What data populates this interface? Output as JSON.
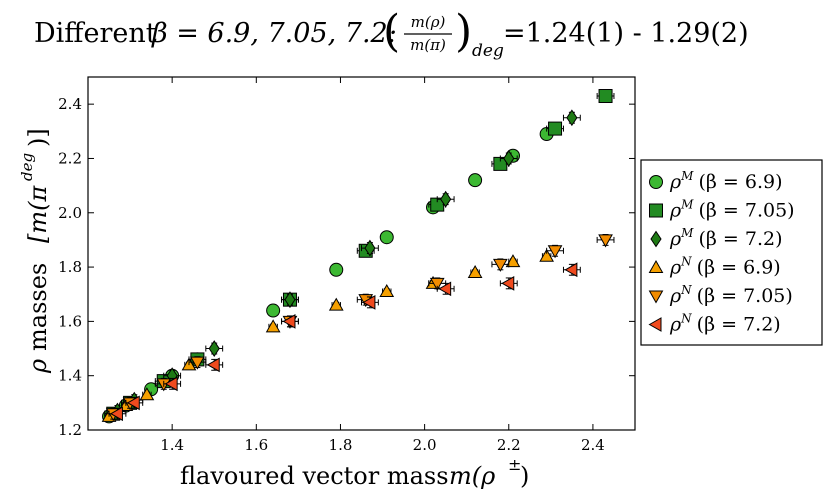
{
  "chart_data": {
    "type": "scatter",
    "title": "Different β = 6.9, 7.05, 7.2: (m(ρ)/m(π))_deg =1.24(1) - 1.29(2)",
    "title_parts": {
      "prefix": "Different",
      "beta_values": "β = 6.9, 7.05, 7.2:",
      "ratio_numerator": "m(ρ)",
      "ratio_denominator": "m(π)",
      "ratio_subscript": "deg",
      "range": "=1.24(1) - 1.29(2)"
    },
    "xlabel": "flavoured vector mass m(ρ±)",
    "xlabel_parts": {
      "text": "flavoured vector mass",
      "math": "m(ρ",
      "sup": "±",
      "close": ")"
    },
    "ylabel": "ρ masses [m(π^deg)]",
    "ylabel_parts": {
      "rho": "ρ",
      "text": "masses",
      "math": "[m(π",
      "sup": "deg",
      "close": ")]"
    },
    "xlim": [
      1.2,
      2.5
    ],
    "ylim": [
      1.2,
      2.5
    ],
    "xticks": [
      1.4,
      1.6,
      1.8,
      2.0,
      2.2,
      2.4
    ],
    "xtick_labels": [
      "1.4",
      "1.6",
      "1.8",
      "2.0",
      "2.2",
      "2.4"
    ],
    "yticks": [
      1.2,
      1.4,
      1.6,
      1.8,
      2.0,
      2.2,
      2.4
    ],
    "ytick_labels": [
      "1.2",
      "1.4",
      "1.6",
      "1.8",
      "2.0",
      "2.2",
      "2.4"
    ],
    "legend_position": "outside-right",
    "series": [
      {
        "name": "ρ^M (β = 6.9)",
        "label_main": "ρ",
        "label_sup": "M",
        "label_rest": "(β = 6.9)",
        "marker": "circle",
        "color": "#3cb832",
        "x": [
          1.25,
          1.29,
          1.35,
          1.4,
          1.46,
          1.64,
          1.79,
          1.91,
          2.02,
          2.12,
          2.21,
          2.29
        ],
        "y": [
          1.25,
          1.29,
          1.35,
          1.4,
          1.46,
          1.64,
          1.79,
          1.91,
          2.02,
          2.12,
          2.21,
          2.29
        ],
        "xerr": [
          0.01,
          0.01,
          0.01,
          0.01,
          0.01,
          0.01,
          0.01,
          0.01,
          0.01,
          0.01,
          0.01,
          0.01
        ],
        "yerr": [
          0.01,
          0.01,
          0.01,
          0.01,
          0.01,
          0.01,
          0.01,
          0.01,
          0.01,
          0.01,
          0.01,
          0.01
        ]
      },
      {
        "name": "ρ^M (β = 7.05)",
        "label_main": "ρ",
        "label_sup": "M",
        "label_rest": "(β = 7.05)",
        "marker": "square",
        "color": "#228b22",
        "x": [
          1.26,
          1.3,
          1.38,
          1.46,
          1.68,
          1.86,
          2.03,
          2.18,
          2.31,
          2.43
        ],
        "y": [
          1.26,
          1.3,
          1.38,
          1.46,
          1.68,
          1.86,
          2.03,
          2.18,
          2.31,
          2.43
        ],
        "xerr": [
          0.02,
          0.02,
          0.02,
          0.02,
          0.02,
          0.02,
          0.02,
          0.02,
          0.02,
          0.02
        ],
        "yerr": [
          0.02,
          0.02,
          0.02,
          0.02,
          0.02,
          0.02,
          0.02,
          0.02,
          0.02,
          0.02
        ]
      },
      {
        "name": "ρ^M (β = 7.2)",
        "label_main": "ρ",
        "label_sup": "M",
        "label_rest": "(β = 7.2)",
        "marker": "diamond",
        "color": "#1e7a14",
        "x": [
          1.27,
          1.31,
          1.4,
          1.5,
          1.68,
          1.87,
          2.05,
          2.2,
          2.35
        ],
        "y": [
          1.27,
          1.31,
          1.4,
          1.5,
          1.68,
          1.87,
          2.05,
          2.2,
          2.35
        ],
        "xerr": [
          0.02,
          0.02,
          0.02,
          0.02,
          0.02,
          0.02,
          0.02,
          0.02,
          0.02
        ],
        "yerr": [
          0.02,
          0.02,
          0.02,
          0.02,
          0.02,
          0.02,
          0.02,
          0.02,
          0.02
        ]
      },
      {
        "name": "ρ^N (β = 6.9)",
        "label_main": "ρ",
        "label_sup": "N",
        "label_rest": "(β = 6.9)",
        "marker": "triangle-up",
        "color": "#f5a000",
        "x": [
          1.25,
          1.29,
          1.34,
          1.44,
          1.64,
          1.79,
          1.91,
          2.02,
          2.12,
          2.21,
          2.29
        ],
        "y": [
          1.25,
          1.29,
          1.33,
          1.44,
          1.58,
          1.66,
          1.71,
          1.74,
          1.78,
          1.82,
          1.84
        ],
        "xerr": [
          0.01,
          0.01,
          0.01,
          0.01,
          0.01,
          0.01,
          0.01,
          0.01,
          0.01,
          0.01,
          0.01
        ],
        "yerr": [
          0.01,
          0.01,
          0.01,
          0.01,
          0.01,
          0.01,
          0.01,
          0.01,
          0.01,
          0.01,
          0.01
        ]
      },
      {
        "name": "ρ^N (β = 7.05)",
        "label_main": "ρ",
        "label_sup": "N",
        "label_rest": "(β = 7.05)",
        "marker": "triangle-down",
        "color": "#f28c00",
        "x": [
          1.26,
          1.3,
          1.38,
          1.46,
          1.68,
          1.86,
          2.03,
          2.18,
          2.31,
          2.43
        ],
        "y": [
          1.26,
          1.3,
          1.37,
          1.45,
          1.6,
          1.68,
          1.74,
          1.81,
          1.86,
          1.9
        ],
        "xerr": [
          0.02,
          0.02,
          0.02,
          0.02,
          0.02,
          0.02,
          0.02,
          0.02,
          0.02,
          0.02
        ],
        "yerr": [
          0.02,
          0.02,
          0.02,
          0.02,
          0.02,
          0.02,
          0.02,
          0.02,
          0.02,
          0.02
        ]
      },
      {
        "name": "ρ^N (β = 7.2)",
        "label_main": "ρ",
        "label_sup": "N",
        "label_rest": "(β = 7.2)",
        "marker": "triangle-left",
        "color": "#f04a1e",
        "x": [
          1.27,
          1.31,
          1.4,
          1.5,
          1.68,
          1.87,
          2.05,
          2.2,
          2.35
        ],
        "y": [
          1.26,
          1.3,
          1.37,
          1.44,
          1.6,
          1.67,
          1.72,
          1.74,
          1.79
        ],
        "xerr": [
          0.02,
          0.02,
          0.02,
          0.02,
          0.02,
          0.02,
          0.02,
          0.02,
          0.02
        ],
        "yerr": [
          0.02,
          0.02,
          0.02,
          0.02,
          0.02,
          0.02,
          0.02,
          0.02,
          0.02
        ]
      }
    ]
  }
}
